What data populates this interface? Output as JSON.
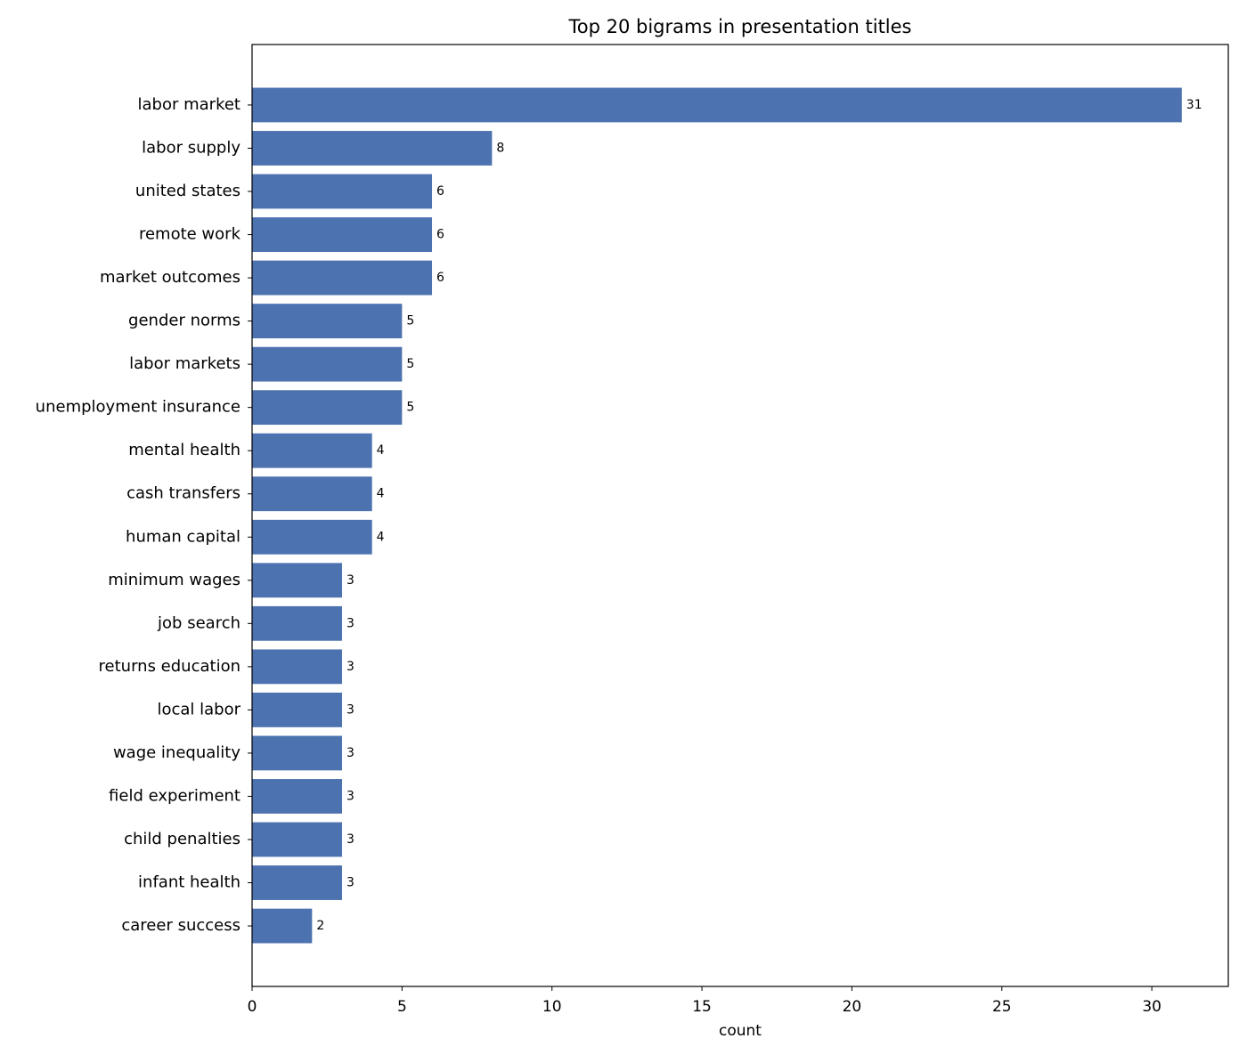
{
  "chart_data": {
    "type": "barh",
    "title": "Top 20 bigrams in presentation titles",
    "x_label": "count",
    "categories": [
      "labor market",
      "labor supply",
      "united states",
      "remote work",
      "market outcomes",
      "gender norms",
      "labor markets",
      "unemployment insurance",
      "mental health",
      "cash transfers",
      "human capital",
      "minimum wages",
      "job search",
      "returns education",
      "local labor",
      "wage inequality",
      "field experiment",
      "child penalties",
      "infant health",
      "career success"
    ],
    "values": [
      31,
      8,
      6,
      6,
      6,
      5,
      5,
      5,
      4,
      4,
      4,
      3,
      3,
      3,
      3,
      3,
      3,
      3,
      3,
      2
    ],
    "color": "#4c72b0",
    "xlim": [
      0,
      32.55
    ],
    "xticks": [
      0,
      5,
      10,
      15,
      20,
      25,
      30
    ]
  }
}
